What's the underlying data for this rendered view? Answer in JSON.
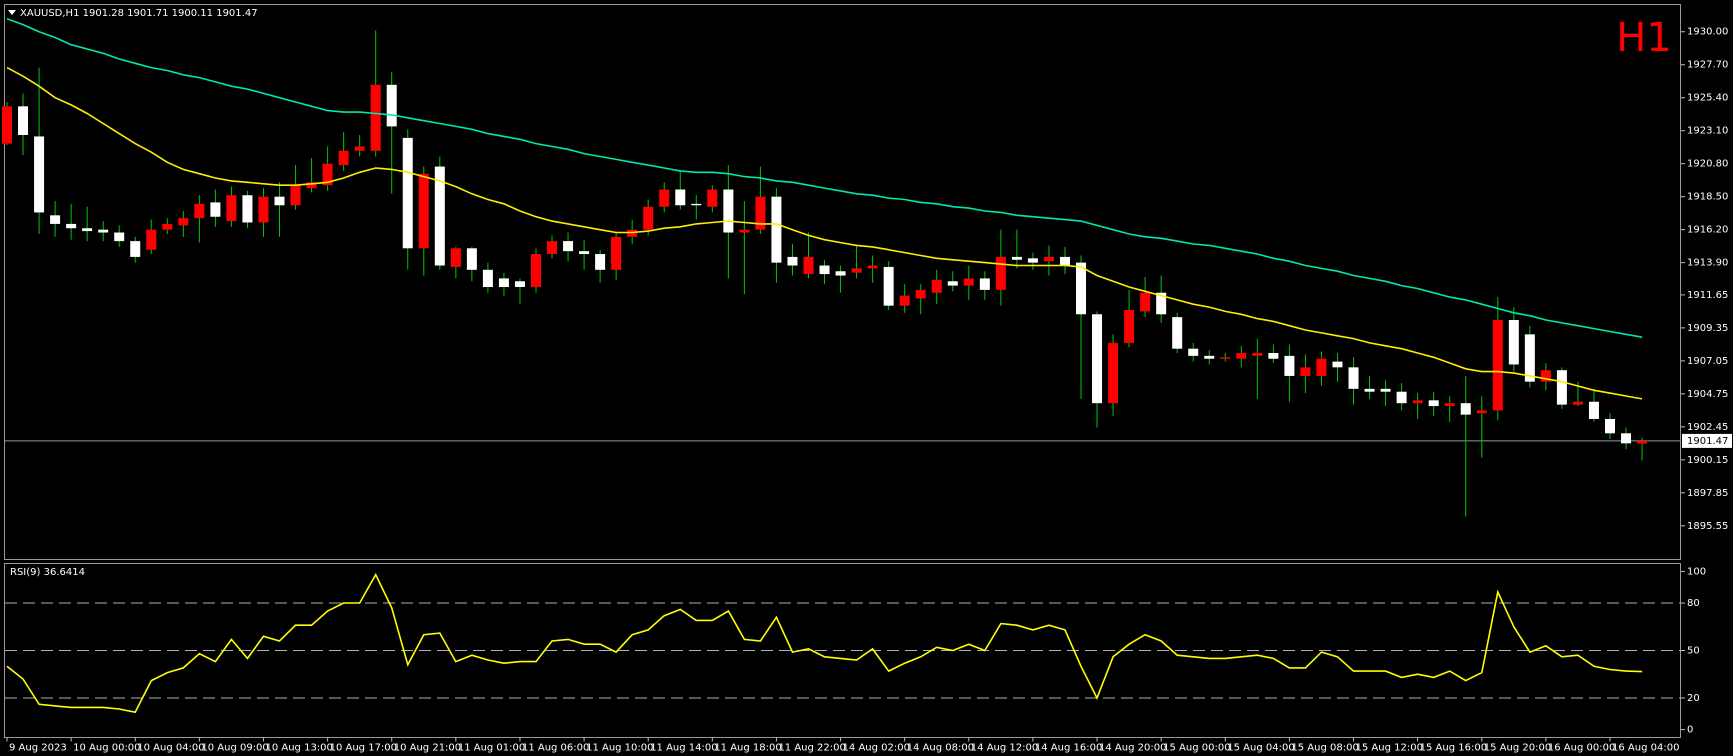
{
  "chart_data": [
    {
      "type": "candlestick",
      "title": "XAUUSD,H1  1901.28 1901.71 1900.11 1901.47",
      "annotation": "H1",
      "up_color": "#ff0000",
      "down_color": "#ffffff",
      "wick_color": "#00c800",
      "open": [
        1922.2,
        1924.8,
        1922.7,
        1917.2,
        1916.6,
        1916.3,
        1916.2,
        1916.0,
        1915.4,
        1914.8,
        1916.2,
        1916.5,
        1917.0,
        1918.1,
        1916.8,
        1918.6,
        1916.7,
        1918.5,
        1917.9,
        1919.1,
        1919.3,
        1920.7,
        1921.7,
        1921.7,
        1926.3,
        1922.6,
        1914.9,
        1920.6,
        1913.6,
        1914.9,
        1913.4,
        1912.8,
        1912.6,
        1912.2,
        1914.5,
        1915.4,
        1914.7,
        1914.5,
        1913.4,
        1915.7,
        1916.2,
        1917.8,
        1919.0,
        1918.0,
        1917.8,
        1919.0,
        1916.0,
        1916.2,
        1918.5,
        1914.3,
        1913.1,
        1913.7,
        1913.3,
        1913.2,
        1913.5,
        1913.6,
        1910.9,
        1911.4,
        1911.8,
        1912.6,
        1912.3,
        1912.8,
        1912.0,
        1914.3,
        1914.2,
        1914.0,
        1914.3,
        1913.9,
        1910.3,
        1904.1,
        1908.3,
        1910.5,
        1911.8,
        1910.1,
        1907.9,
        1907.4,
        1907.2,
        1907.2,
        1907.4,
        1907.6,
        1907.4,
        1906.0,
        1906.0,
        1907.0,
        1906.6,
        1905.1,
        1905.1,
        1904.9,
        1904.1,
        1904.3,
        1903.9,
        1904.1,
        1903.4,
        1903.6,
        1909.9,
        1908.9,
        1905.6,
        1906.4,
        1904.0,
        1904.2,
        1903.0,
        1902.0,
        1901.28
      ],
      "high": [
        1925.1,
        1925.7,
        1927.5,
        1918.2,
        1918.0,
        1917.8,
        1916.8,
        1916.5,
        1915.7,
        1916.9,
        1917.0,
        1917.5,
        1918.6,
        1919.0,
        1919.2,
        1918.9,
        1919.1,
        1919.5,
        1920.7,
        1921.2,
        1922.0,
        1923.0,
        1922.8,
        1930.1,
        1927.2,
        1923.2,
        1920.6,
        1921.3,
        1915.0,
        1915.0,
        1913.9,
        1913.2,
        1912.8,
        1914.9,
        1915.8,
        1916.0,
        1915.5,
        1914.8,
        1916.0,
        1916.9,
        1918.3,
        1919.5,
        1920.3,
        1918.6,
        1919.3,
        1920.7,
        1918.2,
        1920.6,
        1919.1,
        1915.2,
        1916.0,
        1914.1,
        1913.7,
        1915.1,
        1914.4,
        1914.0,
        1912.4,
        1912.4,
        1913.4,
        1913.3,
        1913.7,
        1913.3,
        1916.2,
        1916.2,
        1914.6,
        1915.1,
        1915.0,
        1914.4,
        1910.5,
        1908.9,
        1912.0,
        1912.9,
        1913.0,
        1910.4,
        1908.3,
        1907.8,
        1907.6,
        1908.1,
        1908.6,
        1908.2,
        1908.2,
        1907.5,
        1907.7,
        1907.6,
        1907.3,
        1906.0,
        1905.7,
        1905.5,
        1904.8,
        1904.9,
        1904.6,
        1906.0,
        1904.6,
        1911.5,
        1910.8,
        1909.5,
        1906.9,
        1906.6,
        1905.6,
        1905.1,
        1903.4,
        1902.4,
        1901.71
      ],
      "low": [
        1922.1,
        1921.4,
        1915.9,
        1915.7,
        1915.5,
        1915.4,
        1915.4,
        1915.0,
        1913.9,
        1914.5,
        1915.9,
        1915.7,
        1915.3,
        1916.4,
        1916.4,
        1916.3,
        1915.7,
        1915.7,
        1917.6,
        1918.8,
        1918.9,
        1920.3,
        1921.3,
        1921.3,
        1918.7,
        1913.4,
        1913.0,
        1913.4,
        1912.8,
        1912.6,
        1911.8,
        1911.6,
        1911.0,
        1911.8,
        1914.2,
        1914.0,
        1913.4,
        1912.5,
        1912.7,
        1915.2,
        1915.8,
        1917.4,
        1917.6,
        1916.9,
        1917.4,
        1912.8,
        1911.7,
        1915.9,
        1912.5,
        1913.0,
        1912.8,
        1912.4,
        1911.8,
        1912.8,
        1912.5,
        1910.6,
        1910.4,
        1910.3,
        1911.0,
        1911.9,
        1911.3,
        1911.3,
        1910.9,
        1913.5,
        1913.4,
        1913.0,
        1913.1,
        1904.4,
        1902.4,
        1903.2,
        1908.0,
        1910.1,
        1909.7,
        1907.6,
        1907.0,
        1906.8,
        1907.0,
        1906.6,
        1904.4,
        1906.9,
        1904.2,
        1904.8,
        1905.3,
        1905.6,
        1904.0,
        1904.4,
        1903.9,
        1903.6,
        1903.0,
        1903.2,
        1902.8,
        1896.2,
        1900.3,
        1902.9,
        1906.3,
        1905.2,
        1905.0,
        1903.7,
        1903.9,
        1902.8,
        1901.6,
        1900.9,
        1900.11
      ],
      "close": [
        1924.8,
        1922.8,
        1917.4,
        1916.6,
        1916.3,
        1916.1,
        1916.0,
        1915.4,
        1914.3,
        1916.2,
        1916.6,
        1917.0,
        1918.0,
        1917.1,
        1918.6,
        1916.7,
        1918.5,
        1917.9,
        1919.3,
        1919.5,
        1920.8,
        1921.7,
        1922.0,
        1926.3,
        1923.4,
        1914.9,
        1920.1,
        1913.7,
        1914.9,
        1913.4,
        1912.2,
        1912.2,
        1912.2,
        1914.5,
        1915.4,
        1914.7,
        1914.5,
        1913.4,
        1915.7,
        1916.2,
        1917.8,
        1919.0,
        1917.9,
        1917.9,
        1919.0,
        1916.0,
        1916.2,
        1918.5,
        1913.9,
        1913.7,
        1914.3,
        1913.1,
        1913.0,
        1913.5,
        1913.7,
        1910.9,
        1911.6,
        1912.0,
        1912.7,
        1912.3,
        1912.8,
        1912.0,
        1914.3,
        1914.1,
        1913.9,
        1914.3,
        1913.7,
        1910.3,
        1904.1,
        1908.3,
        1910.6,
        1911.8,
        1910.3,
        1907.9,
        1907.4,
        1907.2,
        1907.3,
        1907.6,
        1907.6,
        1907.2,
        1906.0,
        1906.6,
        1907.2,
        1906.6,
        1905.1,
        1904.9,
        1904.9,
        1904.1,
        1904.3,
        1903.9,
        1904.1,
        1903.3,
        1903.6,
        1909.9,
        1906.8,
        1905.6,
        1906.4,
        1904.0,
        1904.2,
        1903.0,
        1902.0,
        1901.3,
        1901.47
      ],
      "lines": [
        {
          "color": "#00e8b0",
          "values": [
            1930.9,
            1930.5,
            1930.0,
            1929.6,
            1929.1,
            1928.8,
            1928.5,
            1928.1,
            1927.8,
            1927.5,
            1927.3,
            1927.0,
            1926.8,
            1926.5,
            1926.2,
            1926.0,
            1925.7,
            1925.4,
            1925.1,
            1924.8,
            1924.5,
            1924.4,
            1924.4,
            1924.3,
            1924.2,
            1924.0,
            1923.8,
            1923.6,
            1923.4,
            1923.2,
            1922.9,
            1922.7,
            1922.5,
            1922.2,
            1922.0,
            1921.8,
            1921.5,
            1921.3,
            1921.1,
            1920.9,
            1920.7,
            1920.5,
            1920.3,
            1920.2,
            1920.2,
            1920.1,
            1919.9,
            1919.8,
            1919.6,
            1919.5,
            1919.3,
            1919.1,
            1918.9,
            1918.7,
            1918.6,
            1918.4,
            1918.3,
            1918.1,
            1918.0,
            1917.8,
            1917.7,
            1917.5,
            1917.4,
            1917.2,
            1917.1,
            1917.0,
            1916.9,
            1916.8,
            1916.5,
            1916.2,
            1915.9,
            1915.7,
            1915.6,
            1915.4,
            1915.2,
            1915.1,
            1914.9,
            1914.7,
            1914.5,
            1914.2,
            1914.0,
            1913.7,
            1913.5,
            1913.3,
            1913.0,
            1912.8,
            1912.6,
            1912.3,
            1912.1,
            1911.8,
            1911.5,
            1911.3,
            1911.0,
            1910.7,
            1910.4,
            1910.2,
            1909.9,
            1909.7,
            1909.5,
            1909.3,
            1909.1,
            1908.9,
            1908.7
          ]
        },
        {
          "color": "#ffee00",
          "values": [
            1927.5,
            1926.9,
            1926.2,
            1925.4,
            1924.9,
            1924.3,
            1923.6,
            1922.9,
            1922.2,
            1921.6,
            1920.9,
            1920.4,
            1920.1,
            1919.8,
            1919.6,
            1919.5,
            1919.4,
            1919.3,
            1919.3,
            1919.4,
            1919.5,
            1919.8,
            1920.2,
            1920.5,
            1920.4,
            1920.2,
            1919.9,
            1919.6,
            1919.2,
            1918.7,
            1918.3,
            1918.0,
            1917.5,
            1917.1,
            1916.8,
            1916.6,
            1916.4,
            1916.2,
            1916.0,
            1916.0,
            1916.1,
            1916.3,
            1916.4,
            1916.6,
            1916.7,
            1916.8,
            1916.7,
            1916.6,
            1916.6,
            1916.2,
            1915.8,
            1915.5,
            1915.3,
            1915.1,
            1915.0,
            1914.8,
            1914.6,
            1914.4,
            1914.2,
            1914.1,
            1914.0,
            1913.9,
            1913.8,
            1913.7,
            1913.7,
            1913.7,
            1913.7,
            1913.6,
            1913.0,
            1912.6,
            1912.2,
            1911.9,
            1911.6,
            1911.3,
            1911.0,
            1910.8,
            1910.5,
            1910.3,
            1910.0,
            1909.8,
            1909.5,
            1909.2,
            1909.0,
            1908.8,
            1908.6,
            1908.3,
            1908.1,
            1907.9,
            1907.6,
            1907.3,
            1906.9,
            1906.5,
            1906.3,
            1906.3,
            1906.2,
            1906.0,
            1905.8,
            1905.6,
            1905.3,
            1905.0,
            1904.8,
            1904.6,
            1904.4
          ]
        }
      ],
      "price_line": 1901.47,
      "ylim": [
        1893.2,
        1931.9
      ],
      "yticks": [
        {
          "value": 1930,
          "label": "1930.00"
        },
        {
          "value": 1927.7,
          "label": "1927.70"
        },
        {
          "value": 1925.4,
          "label": "1925.40"
        },
        {
          "value": 1923.1,
          "label": "1923.10"
        },
        {
          "value": 1920.8,
          "label": "1920.80"
        },
        {
          "value": 1918.5,
          "label": "1918.50"
        },
        {
          "value": 1916.2,
          "label": "1916.20"
        },
        {
          "value": 1913.9,
          "label": "1913.90"
        },
        1911.65,
        {
          "value": 1909.35,
          "label": "1909.35"
        },
        {
          "value": 1907.05,
          "label": "1907.05"
        },
        1904.75,
        1902.45,
        {
          "value": 1900.15,
          "label": "1900.15"
        },
        1897.85,
        1895.55
      ]
    },
    {
      "type": "line",
      "title": "RSI(9) 36.6414",
      "color": "#ffff00",
      "categories": [
        "9 Aug 2023",
        null,
        null,
        null,
        "10 Aug 00:00",
        null,
        null,
        null,
        "10 Aug 04:00",
        null,
        null,
        null,
        "10 Aug 09:00",
        null,
        null,
        null,
        "10 Aug 13:00",
        null,
        null,
        null,
        "10 Aug 17:00",
        null,
        null,
        null,
        "10 Aug 21:00",
        null,
        null,
        null,
        "11 Aug 01:00",
        null,
        null,
        null,
        "11 Aug 06:00",
        null,
        null,
        null,
        "11 Aug 10:00",
        null,
        null,
        null,
        "11 Aug 14:00",
        null,
        null,
        null,
        "11 Aug 18:00",
        null,
        null,
        null,
        "11 Aug 22:00",
        null,
        null,
        null,
        "14 Aug 02:00",
        null,
        null,
        null,
        "14 Aug 08:00",
        null,
        null,
        null,
        "14 Aug 12:00",
        null,
        null,
        null,
        "14 Aug 16:00",
        null,
        null,
        null,
        "14 Aug 20:00",
        null,
        null,
        null,
        "15 Aug 00:00",
        null,
        null,
        null,
        "15 Aug 04:00",
        null,
        null,
        null,
        "15 Aug 08:00",
        null,
        null,
        null,
        "15 Aug 12:00",
        null,
        null,
        null,
        "15 Aug 16:00",
        null,
        null,
        null,
        "15 Aug 20:00",
        null,
        null,
        null,
        "16 Aug 00:00",
        null,
        null,
        null,
        "16 Aug 04:00",
        null,
        null
      ],
      "values": [
        40,
        32,
        16,
        15,
        14,
        14,
        14,
        13,
        11,
        31,
        36,
        39,
        48,
        43,
        57,
        45,
        59,
        56,
        66,
        66,
        75,
        80,
        80,
        98,
        77,
        41,
        60,
        61,
        43,
        47,
        44,
        42,
        43,
        43,
        56,
        57,
        54,
        54,
        49,
        60,
        63,
        72,
        76,
        69,
        69,
        75,
        57,
        56,
        71,
        49,
        51,
        46,
        45,
        44,
        51,
        37,
        42,
        46,
        52,
        50,
        54,
        50,
        67,
        66,
        63,
        66,
        63,
        40,
        20,
        46,
        54,
        60,
        56,
        47,
        46,
        45,
        45,
        46,
        47,
        45,
        39,
        39,
        49,
        46,
        37,
        37,
        37,
        33,
        35,
        33,
        37,
        31,
        36,
        87,
        65,
        49,
        53,
        46,
        47,
        40,
        38,
        37,
        36.6414
      ],
      "levels": [
        80,
        50,
        20
      ],
      "ylim": [
        -5,
        105
      ],
      "yticks": [
        100,
        80,
        50,
        20,
        0
      ]
    }
  ]
}
